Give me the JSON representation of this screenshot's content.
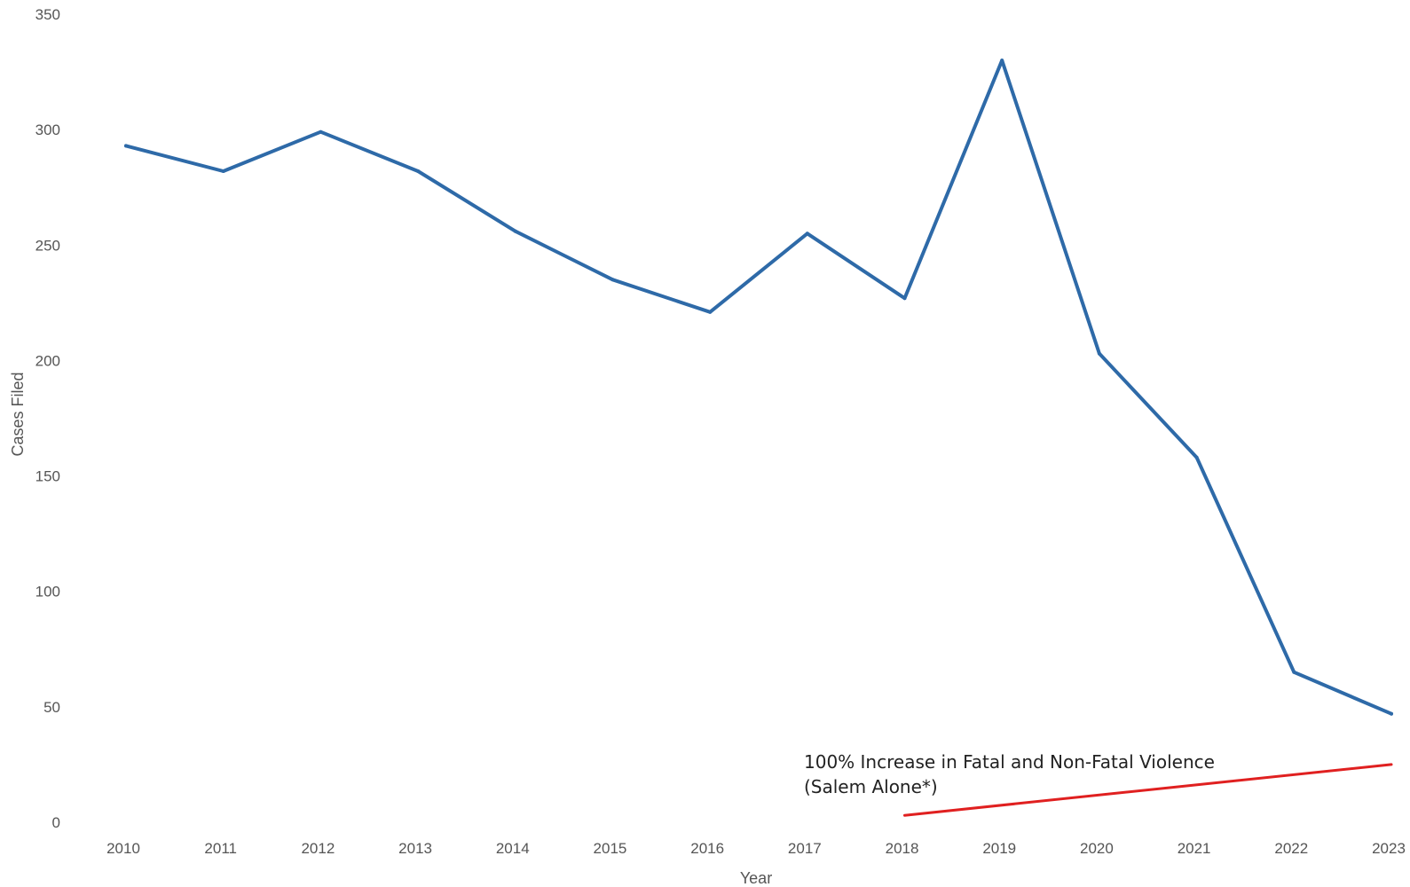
{
  "chart_data": {
    "type": "line",
    "title": "",
    "xlabel": "Year",
    "ylabel": "Cases Filed",
    "ylim": [
      0,
      350
    ],
    "yticks": [
      0,
      50,
      100,
      150,
      200,
      250,
      300,
      350
    ],
    "grid": false,
    "categories": [
      "2010",
      "2011",
      "2012",
      "2013",
      "2014",
      "2015",
      "2016",
      "2017",
      "2018",
      "2019",
      "2020",
      "2021",
      "2022",
      "2023"
    ],
    "series": [
      {
        "color": "#2e6aa8",
        "values": [
          293,
          282,
          299,
          282,
          256,
          235,
          221,
          255,
          227,
          330,
          203,
          158,
          65,
          47
        ]
      }
    ],
    "annotations": [
      {
        "text_line1": "100% Increase in Fatal and Non-Fatal Violence",
        "text_line2": "(Salem Alone*)",
        "color": "#e02020",
        "x_start": "2018",
        "x_end": "2023",
        "y_start": 3,
        "y_end": 25
      }
    ]
  }
}
